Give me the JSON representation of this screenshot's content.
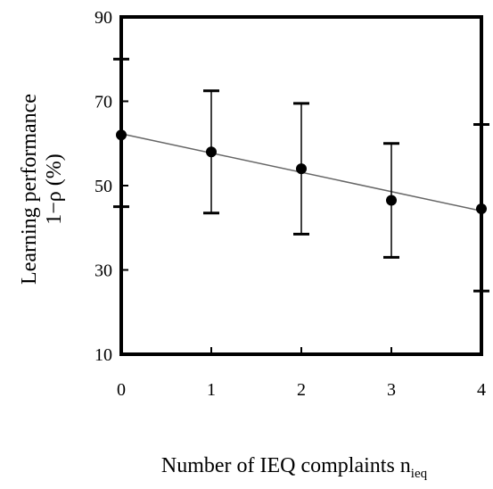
{
  "chart_data": {
    "type": "scatter",
    "title": "",
    "xlabel": "Number of IEQ complaints ",
    "xlabel_sub": "ieq",
    "xlabel_main": "Number of IEQ complaints n",
    "ylabel_line1": "Learning performance",
    "ylabel_line2": "1−ρ (%)",
    "xlim": [
      0,
      4
    ],
    "ylim": [
      10,
      90
    ],
    "xticks": [
      "0",
      "1",
      "2",
      "3",
      "4"
    ],
    "yticks": [
      "10",
      "30",
      "50",
      "70",
      "90"
    ],
    "grid": false,
    "legend": "none",
    "points": [
      {
        "x": 0,
        "y": 62,
        "err_low": 45,
        "err_high": 80
      },
      {
        "x": 1,
        "y": 58,
        "err_low": 43.5,
        "err_high": 72.5
      },
      {
        "x": 2,
        "y": 54,
        "err_low": 38.5,
        "err_high": 69.5
      },
      {
        "x": 3,
        "y": 46.5,
        "err_low": 33,
        "err_high": 60
      },
      {
        "x": 4,
        "y": 44.5,
        "err_low": 25,
        "err_high": 64.5
      }
    ],
    "trendline": {
      "x": [
        0,
        4
      ],
      "y": [
        62.3,
        44
      ]
    },
    "colors": {
      "marker": "#000000",
      "trendline": "#666666",
      "axes": "#000000"
    }
  }
}
